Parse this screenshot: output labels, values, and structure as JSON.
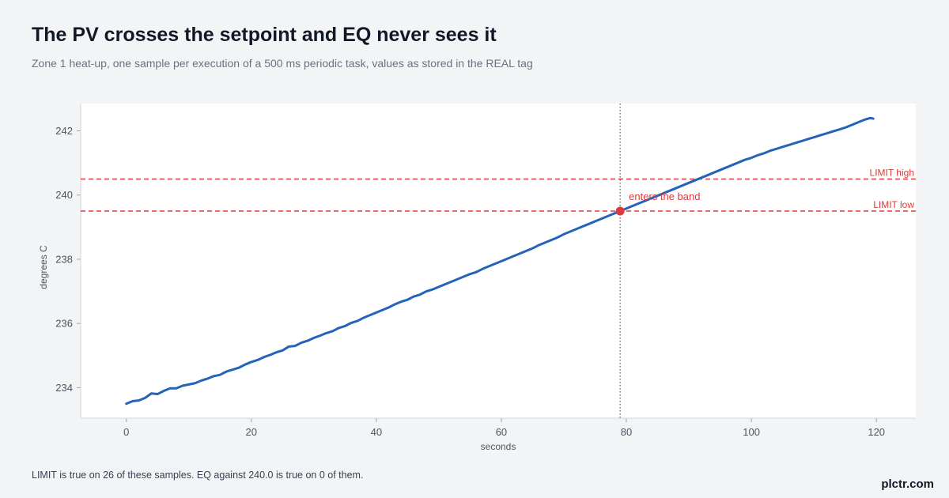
{
  "header": {
    "title": "The PV crosses the setpoint and EQ never sees it",
    "subtitle": "Zone 1 heat-up, one sample per execution of a 500 ms periodic task, values as stored in the REAL tag"
  },
  "footer": {
    "note": "LIMIT is true on 26 of these samples. EQ against 240.0 is true on 0 of them.",
    "brand": "plctr.com"
  },
  "colors": {
    "series": "#2563b8",
    "reference": "#dc3b3b",
    "marker": "#dc3b3b",
    "vline": "#555555",
    "plot_bg": "#ffffff",
    "page_bg": "#f3f4f6"
  },
  "chart_data": {
    "type": "line",
    "title": "The PV crosses the setpoint and EQ never sees it",
    "subtitle": "Zone 1 heat-up, one sample per execution of a 500 ms periodic task, values as stored in the REAL tag",
    "xlabel": "seconds",
    "ylabel": "degrees C",
    "xlim": [
      -7.3,
      126.3
    ],
    "ylim": [
      233.05,
      242.85
    ],
    "xticks": [
      0,
      20,
      40,
      60,
      80,
      100,
      120
    ],
    "yticks": [
      234,
      236,
      238,
      240,
      242
    ],
    "grid": false,
    "series": [
      {
        "x": [
          0,
          1,
          2,
          3,
          4,
          5,
          6,
          7,
          8,
          9,
          10,
          11,
          12,
          13,
          14,
          15,
          16,
          17,
          18,
          19,
          20,
          21,
          22,
          23,
          24,
          25,
          26,
          27,
          28,
          29,
          30,
          31,
          32,
          33,
          34,
          35,
          36,
          37,
          38,
          39,
          40,
          41,
          42,
          43,
          44,
          45,
          46,
          47,
          48,
          49,
          50,
          51,
          52,
          53,
          54,
          55,
          56,
          57,
          58,
          59,
          60,
          61,
          62,
          63,
          64,
          65,
          66,
          67,
          68,
          69,
          70,
          71,
          72,
          73,
          74,
          75,
          76,
          77,
          78,
          79,
          80,
          81,
          82,
          83,
          84,
          85,
          86,
          87,
          88,
          89,
          90,
          91,
          92,
          93,
          94,
          95,
          96,
          97,
          98,
          99,
          100,
          101,
          102,
          103,
          104,
          105,
          106,
          107,
          108,
          109,
          110,
          111,
          112,
          113,
          114,
          115,
          116,
          117,
          118,
          119,
          119.5
        ],
        "y": [
          233.5,
          233.58,
          233.6,
          233.68,
          233.82,
          233.8,
          233.9,
          233.98,
          233.98,
          234.06,
          234.1,
          234.14,
          234.22,
          234.28,
          234.36,
          234.4,
          234.5,
          234.56,
          234.62,
          234.72,
          234.8,
          234.86,
          234.95,
          235.02,
          235.1,
          235.16,
          235.28,
          235.3,
          235.4,
          235.46,
          235.55,
          235.62,
          235.7,
          235.76,
          235.86,
          235.92,
          236.02,
          236.08,
          236.18,
          236.26,
          236.34,
          236.42,
          236.5,
          236.6,
          236.68,
          236.74,
          236.84,
          236.9,
          237.0,
          237.06,
          237.14,
          237.22,
          237.3,
          237.38,
          237.46,
          237.54,
          237.6,
          237.7,
          237.78,
          237.86,
          237.94,
          238.02,
          238.1,
          238.18,
          238.26,
          238.34,
          238.44,
          238.52,
          238.6,
          238.68,
          238.78,
          238.86,
          238.94,
          239.02,
          239.1,
          239.18,
          239.26,
          239.34,
          239.42,
          239.5,
          239.58,
          239.66,
          239.74,
          239.82,
          239.9,
          239.98,
          240.06,
          240.14,
          240.22,
          240.3,
          240.38,
          240.46,
          240.54,
          240.62,
          240.7,
          240.78,
          240.86,
          240.94,
          241.02,
          241.1,
          241.16,
          241.24,
          241.3,
          241.38,
          241.44,
          241.5,
          241.56,
          241.62,
          241.68,
          241.74,
          241.8,
          241.86,
          241.92,
          241.98,
          242.04,
          242.1,
          242.18,
          242.26,
          242.34,
          242.4,
          242.38
        ]
      }
    ],
    "reference_lines": [
      {
        "y": 240.5,
        "label": "LIMIT high"
      },
      {
        "y": 239.5,
        "label": "LIMIT low"
      }
    ],
    "vertical_line": {
      "x": 79
    },
    "annotation": {
      "x": 79,
      "y": 239.5,
      "label": "enters the band"
    }
  }
}
